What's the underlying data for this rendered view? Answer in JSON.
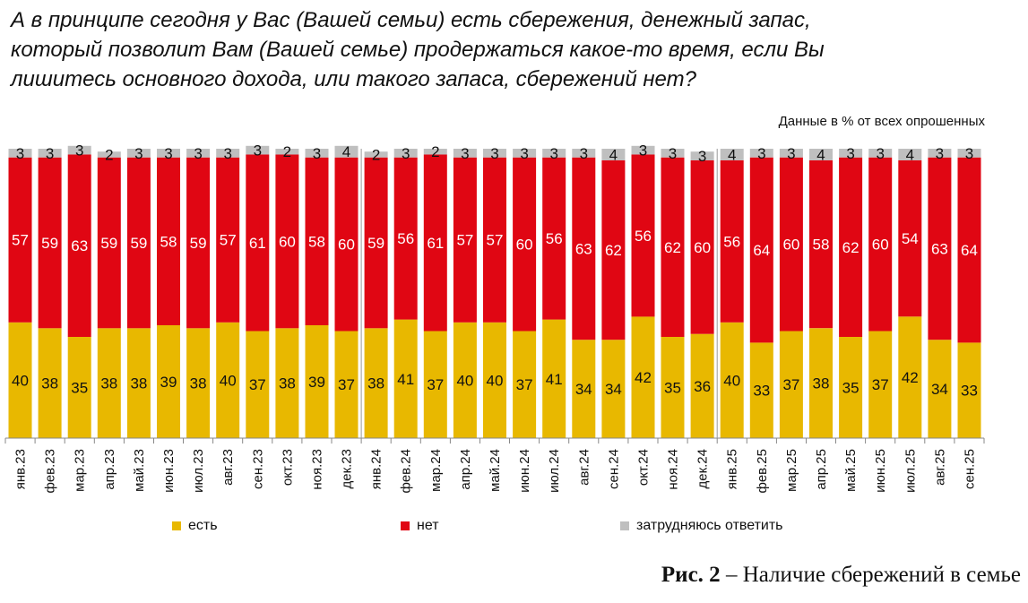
{
  "title_lines": [
    "А в принципе сегодня у Вас (Вашей семьи) есть сбережения, денежный запас,",
    "который позволит Вам (Вашей семье) продержаться какое-то время, если Вы",
    "лишитесь основного дохода, или такого запаса, сбережений нет?"
  ],
  "subtitle": "Данные в % от всех опрошенных",
  "caption": {
    "fig": "Рис. 2",
    "text": "– Наличие сбережений в семье"
  },
  "colors": {
    "est": "#E8B800",
    "net": "#E00613",
    "hard": "#BFBFBF"
  },
  "chart_data": {
    "type": "bar",
    "stacked": true,
    "normalized_100": true,
    "categories": [
      "янв.23",
      "фев.23",
      "мар.23",
      "апр.23",
      "май.23",
      "июн.23",
      "июл.23",
      "авг.23",
      "сен.23",
      "окт.23",
      "ноя.23",
      "дек.23",
      "янв.24",
      "фев.24",
      "мар.24",
      "апр.24",
      "май.24",
      "июн.24",
      "июл.24",
      "авг.24",
      "сен.24",
      "окт.24",
      "ноя.24",
      "дек.24",
      "янв.25",
      "фев.25",
      "мар.25",
      "апр.25",
      "май.25",
      "июн.25",
      "июл.25",
      "авг.25",
      "сен.25"
    ],
    "series": [
      {
        "name": "есть",
        "values": [
          40,
          38,
          35,
          38,
          38,
          39,
          38,
          40,
          37,
          38,
          39,
          37,
          38,
          41,
          37,
          40,
          40,
          37,
          41,
          34,
          34,
          42,
          35,
          36,
          40,
          33,
          37,
          38,
          35,
          37,
          42,
          34,
          33
        ]
      },
      {
        "name": "нет",
        "values": [
          57,
          59,
          63,
          59,
          59,
          58,
          59,
          57,
          61,
          60,
          58,
          60,
          59,
          56,
          61,
          57,
          57,
          60,
          56,
          63,
          62,
          56,
          62,
          60,
          56,
          64,
          60,
          58,
          62,
          60,
          54,
          63,
          64
        ]
      },
      {
        "name": "затрудняюсь ответить",
        "values": [
          3,
          3,
          3,
          2,
          3,
          3,
          3,
          3,
          3,
          2,
          3,
          4,
          2,
          3,
          2,
          3,
          3,
          3,
          3,
          3,
          4,
          3,
          3,
          3,
          4,
          3,
          3,
          4,
          3,
          3,
          4,
          3,
          3
        ]
      }
    ],
    "ylim": [
      0,
      100
    ],
    "legend_position": "bottom"
  }
}
